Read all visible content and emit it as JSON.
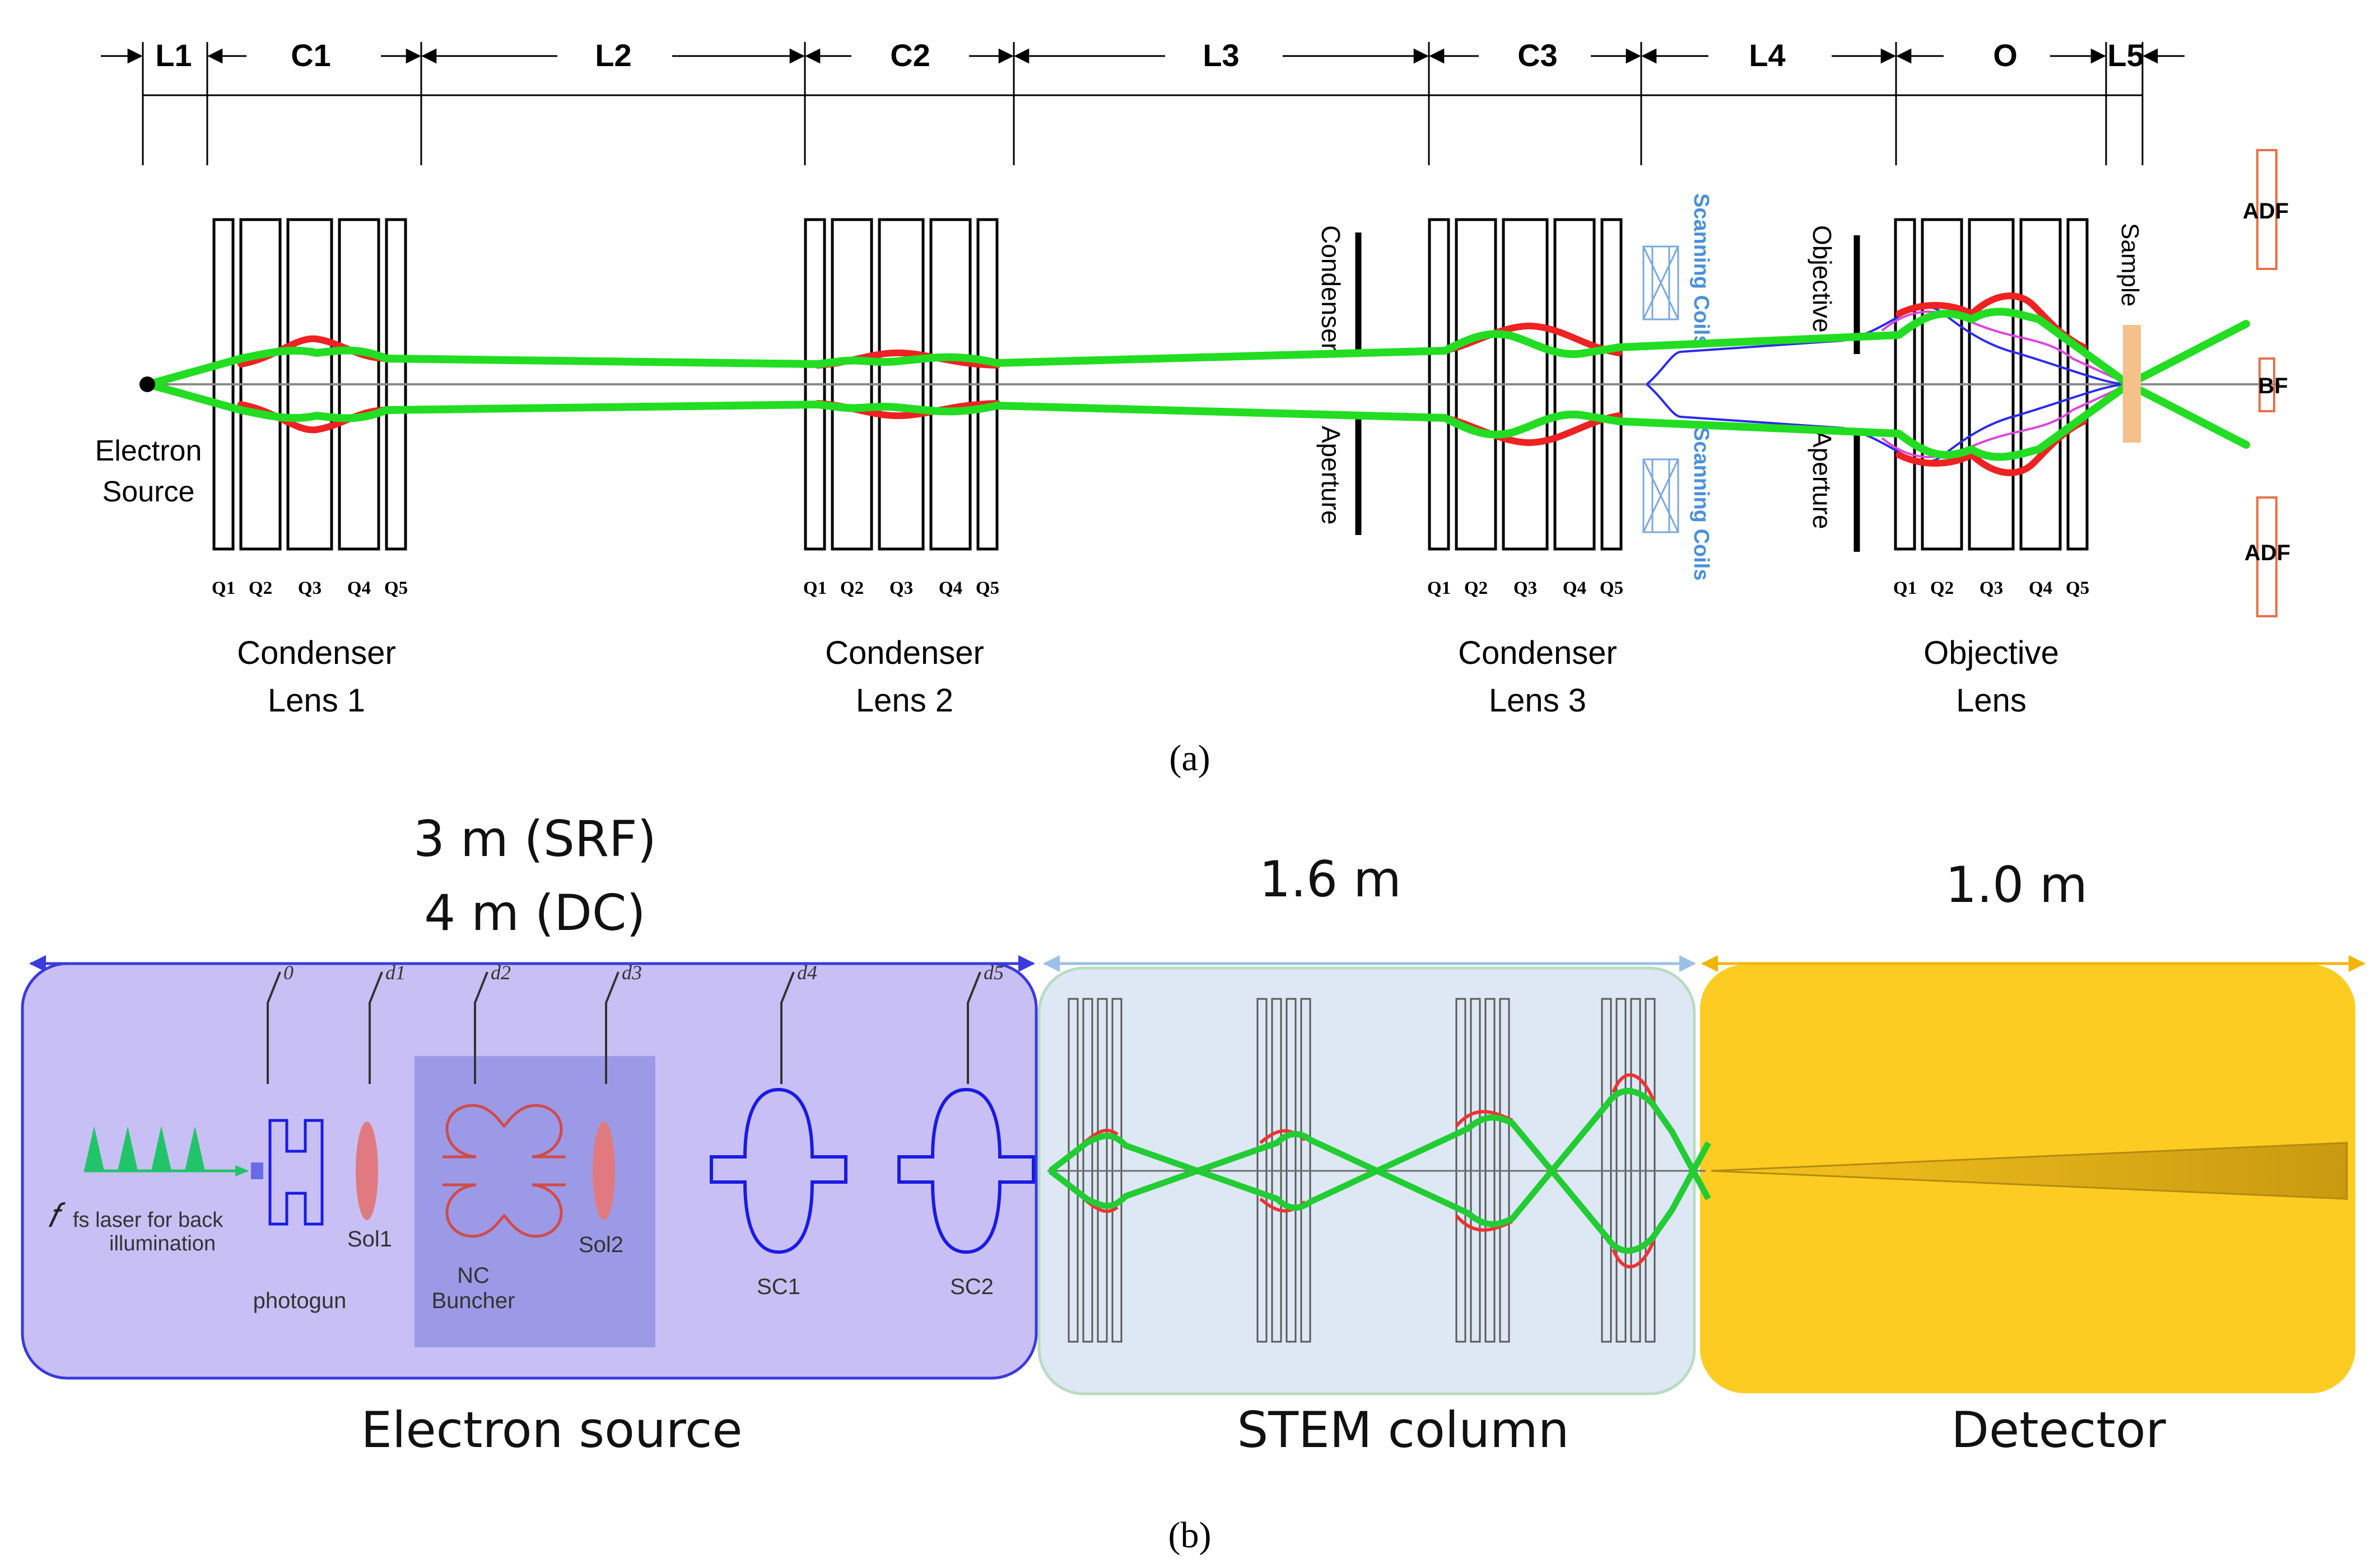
{
  "colors": {
    "ray_green": "#22dd22",
    "ray_red": "#ee2222",
    "coil_blue": "#4a90d9",
    "scan_blue": "#2a2aee",
    "ray_magenta": "#dd44dd",
    "adf_orange": "#e8704a",
    "sample_peach": "#f5c08a",
    "source_fill": "#c8c0f4",
    "source_border": "#3a3adf",
    "buncher_fill": "#9c9ae6",
    "stem_fill": "#dde8f4",
    "stem_border": "#b8dcc0",
    "detector_fill": "#fccc22",
    "detector_arrow": "#f4b400",
    "bunch_green": "#22c46a",
    "cavity_blue": "#1a1ae6",
    "solenoid_pink": "#e07a80"
  },
  "panel_a": {
    "segments": [
      "L1",
      "C1",
      "L2",
      "C2",
      "L3",
      "C3",
      "L4",
      "O",
      "L5"
    ],
    "quad_labels": [
      "Q1",
      "Q2",
      "Q3",
      "Q4",
      "Q5"
    ],
    "lens_titles": [
      {
        "line1": "Condenser",
        "line2": "Lens 1"
      },
      {
        "line1": "Condenser",
        "line2": "Lens 2"
      },
      {
        "line1": "Condenser",
        "line2": "Lens 3"
      },
      {
        "line1": "Objective",
        "line2": "Lens"
      }
    ],
    "source_line1": "Electron",
    "source_line2": "Source",
    "condenser_aperture_top": "Condenser",
    "condenser_aperture_bottom": "Aperture",
    "objective_aperture_top": "Objective",
    "objective_aperture_bottom": "Aperture",
    "scanning_coils": "Scanning Coils",
    "sample": "Sample",
    "adf": "ADF",
    "bf": "BF",
    "caption": "(a)"
  },
  "panel_b": {
    "length_source_line1": "3 m (SRF)",
    "length_source_line2": "4 m (DC)",
    "length_column": "1.6 m",
    "length_detector": "1.0 m",
    "markers": [
      "0",
      "d1",
      "d2",
      "d3",
      "d4",
      "d5"
    ],
    "laser_line1": "fs laser for back",
    "laser_line2": "illumination",
    "photogun": "photogun",
    "sol1": "Sol1",
    "nc_line1": "NC",
    "nc_line2": "Buncher",
    "sol2": "Sol2",
    "sc1": "SC1",
    "sc2": "SC2",
    "label_source": "Electron source",
    "label_column": "STEM column",
    "label_detector": "Detector",
    "caption": "(b)"
  }
}
